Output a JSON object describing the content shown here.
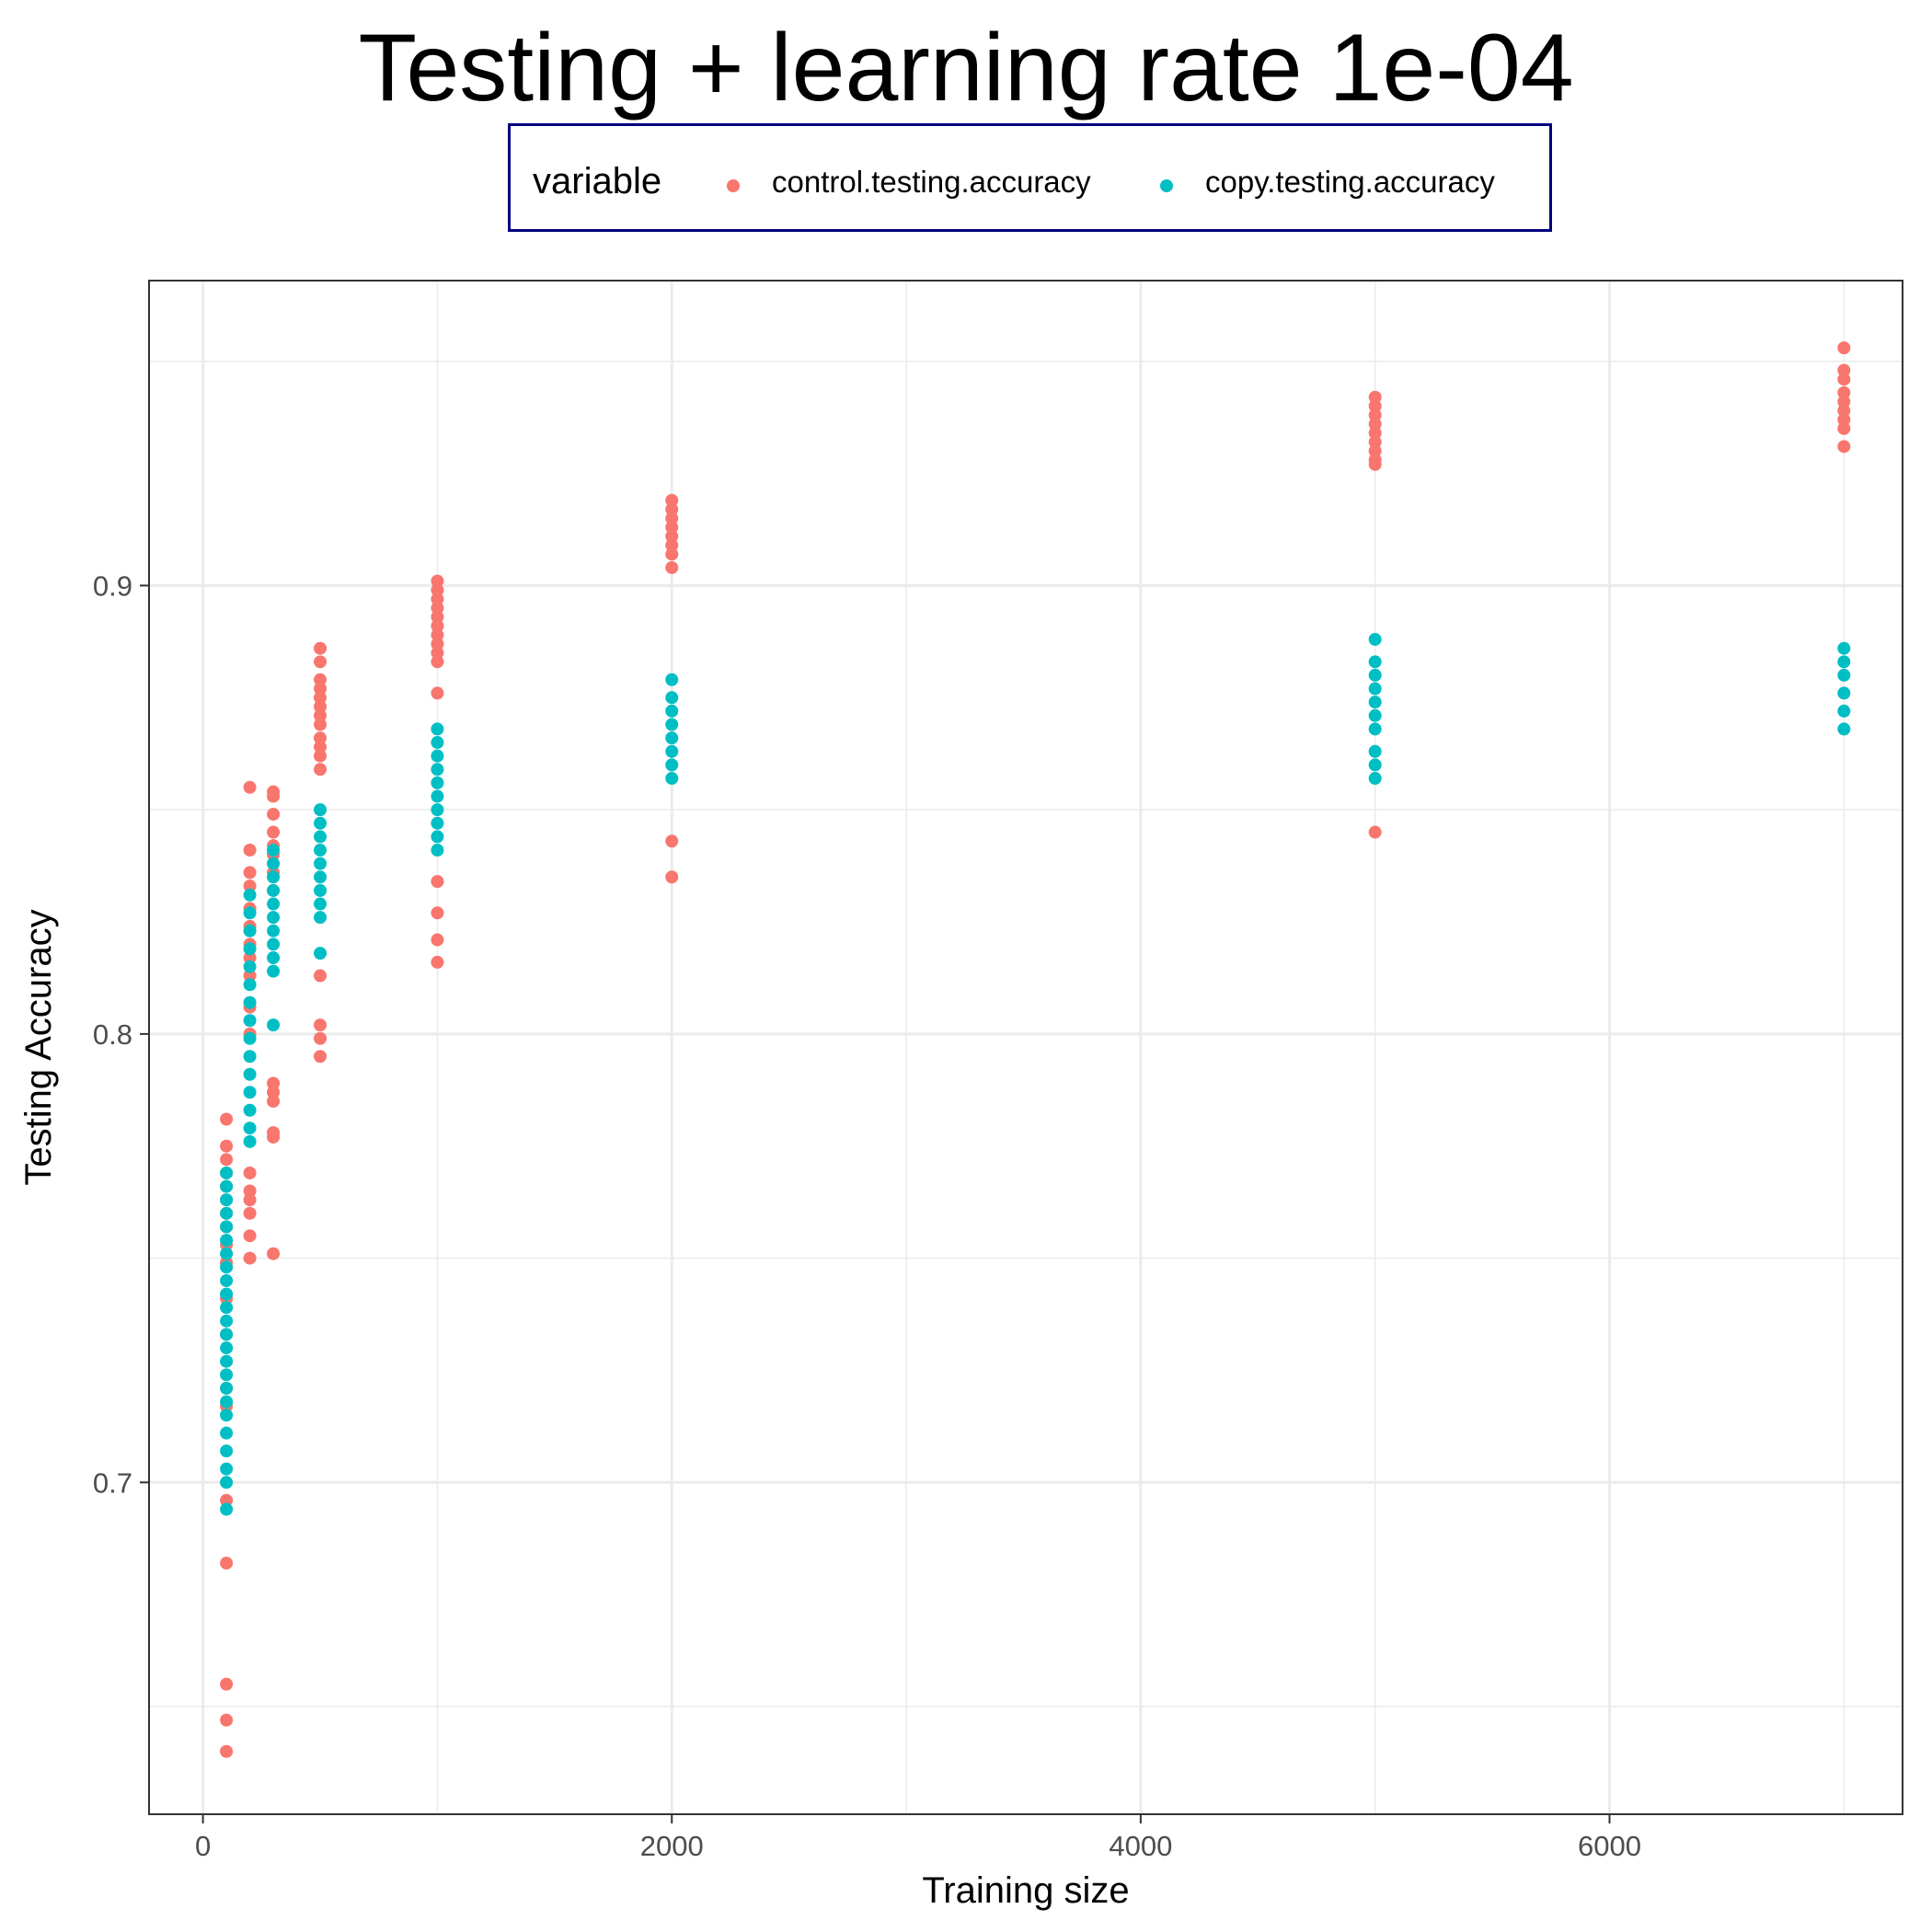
{
  "chart_data": {
    "type": "scatter",
    "title": "Testing + learning rate 1e-04",
    "xlabel": "Training size",
    "ylabel": "Testing Accuracy",
    "xlim": [
      -230,
      7250
    ],
    "ylim": [
      0.626,
      0.968
    ],
    "xticks": [
      0,
      2000,
      4000,
      6000
    ],
    "xtick_labels": [
      "0",
      "2000",
      "4000",
      "6000"
    ],
    "yticks": [
      0.7,
      0.8,
      0.9
    ],
    "ytick_labels": [
      "0.7",
      "0.8",
      "0.9"
    ],
    "grid": true,
    "legend": {
      "title": "variable",
      "placement": "top"
    },
    "series": [
      {
        "name": "control.testing.accuracy",
        "color": "#F8766D",
        "points": [
          [
            100,
            0.781
          ],
          [
            100,
            0.775
          ],
          [
            100,
            0.772
          ],
          [
            100,
            0.769
          ],
          [
            100,
            0.766
          ],
          [
            100,
            0.763
          ],
          [
            100,
            0.76
          ],
          [
            100,
            0.757
          ],
          [
            100,
            0.753
          ],
          [
            100,
            0.749
          ],
          [
            100,
            0.741
          ],
          [
            100,
            0.733
          ],
          [
            100,
            0.721
          ],
          [
            100,
            0.717
          ],
          [
            100,
            0.696
          ],
          [
            100,
            0.682
          ],
          [
            100,
            0.655
          ],
          [
            100,
            0.647
          ],
          [
            100,
            0.64
          ],
          [
            200,
            0.855
          ],
          [
            200,
            0.841
          ],
          [
            200,
            0.836
          ],
          [
            200,
            0.833
          ],
          [
            200,
            0.828
          ],
          [
            200,
            0.824
          ],
          [
            200,
            0.82
          ],
          [
            200,
            0.817
          ],
          [
            200,
            0.813
          ],
          [
            200,
            0.806
          ],
          [
            200,
            0.8
          ],
          [
            200,
            0.769
          ],
          [
            200,
            0.765
          ],
          [
            200,
            0.763
          ],
          [
            200,
            0.76
          ],
          [
            200,
            0.755
          ],
          [
            200,
            0.75
          ],
          [
            300,
            0.854
          ],
          [
            300,
            0.853
          ],
          [
            300,
            0.849
          ],
          [
            300,
            0.845
          ],
          [
            300,
            0.842
          ],
          [
            300,
            0.84
          ],
          [
            300,
            0.836
          ],
          [
            300,
            0.832
          ],
          [
            300,
            0.789
          ],
          [
            300,
            0.787
          ],
          [
            300,
            0.785
          ],
          [
            300,
            0.778
          ],
          [
            300,
            0.777
          ],
          [
            300,
            0.751
          ],
          [
            500,
            0.886
          ],
          [
            500,
            0.883
          ],
          [
            500,
            0.879
          ],
          [
            500,
            0.877
          ],
          [
            500,
            0.875
          ],
          [
            500,
            0.873
          ],
          [
            500,
            0.871
          ],
          [
            500,
            0.869
          ],
          [
            500,
            0.866
          ],
          [
            500,
            0.864
          ],
          [
            500,
            0.862
          ],
          [
            500,
            0.859
          ],
          [
            500,
            0.813
          ],
          [
            500,
            0.802
          ],
          [
            500,
            0.799
          ],
          [
            500,
            0.795
          ],
          [
            1000,
            0.901
          ],
          [
            1000,
            0.899
          ],
          [
            1000,
            0.897
          ],
          [
            1000,
            0.895
          ],
          [
            1000,
            0.893
          ],
          [
            1000,
            0.891
          ],
          [
            1000,
            0.889
          ],
          [
            1000,
            0.887
          ],
          [
            1000,
            0.885
          ],
          [
            1000,
            0.883
          ],
          [
            1000,
            0.876
          ],
          [
            1000,
            0.834
          ],
          [
            1000,
            0.827
          ],
          [
            1000,
            0.821
          ],
          [
            1000,
            0.816
          ],
          [
            2000,
            0.919
          ],
          [
            2000,
            0.917
          ],
          [
            2000,
            0.915
          ],
          [
            2000,
            0.913
          ],
          [
            2000,
            0.911
          ],
          [
            2000,
            0.909
          ],
          [
            2000,
            0.907
          ],
          [
            2000,
            0.904
          ],
          [
            2000,
            0.843
          ],
          [
            2000,
            0.835
          ],
          [
            5000,
            0.942
          ],
          [
            5000,
            0.94
          ],
          [
            5000,
            0.938
          ],
          [
            5000,
            0.936
          ],
          [
            5000,
            0.934
          ],
          [
            5000,
            0.932
          ],
          [
            5000,
            0.93
          ],
          [
            5000,
            0.928
          ],
          [
            5000,
            0.927
          ],
          [
            5000,
            0.845
          ],
          [
            7000,
            0.953
          ],
          [
            7000,
            0.948
          ],
          [
            7000,
            0.946
          ],
          [
            7000,
            0.943
          ],
          [
            7000,
            0.941
          ],
          [
            7000,
            0.939
          ],
          [
            7000,
            0.937
          ],
          [
            7000,
            0.935
          ],
          [
            7000,
            0.931
          ]
        ]
      },
      {
        "name": "copy.testing.accuracy",
        "color": "#00BFC4",
        "points": [
          [
            100,
            0.769
          ],
          [
            100,
            0.766
          ],
          [
            100,
            0.763
          ],
          [
            100,
            0.76
          ],
          [
            100,
            0.757
          ],
          [
            100,
            0.754
          ],
          [
            100,
            0.751
          ],
          [
            100,
            0.748
          ],
          [
            100,
            0.745
          ],
          [
            100,
            0.742
          ],
          [
            100,
            0.739
          ],
          [
            100,
            0.736
          ],
          [
            100,
            0.733
          ],
          [
            100,
            0.73
          ],
          [
            100,
            0.727
          ],
          [
            100,
            0.724
          ],
          [
            100,
            0.721
          ],
          [
            100,
            0.718
          ],
          [
            100,
            0.715
          ],
          [
            100,
            0.711
          ],
          [
            100,
            0.707
          ],
          [
            100,
            0.703
          ],
          [
            100,
            0.7
          ],
          [
            100,
            0.694
          ],
          [
            200,
            0.831
          ],
          [
            200,
            0.827
          ],
          [
            200,
            0.823
          ],
          [
            200,
            0.819
          ],
          [
            200,
            0.815
          ],
          [
            200,
            0.811
          ],
          [
            200,
            0.807
          ],
          [
            200,
            0.803
          ],
          [
            200,
            0.799
          ],
          [
            200,
            0.795
          ],
          [
            200,
            0.791
          ],
          [
            200,
            0.787
          ],
          [
            200,
            0.783
          ],
          [
            200,
            0.779
          ],
          [
            200,
            0.776
          ],
          [
            300,
            0.841
          ],
          [
            300,
            0.838
          ],
          [
            300,
            0.835
          ],
          [
            300,
            0.832
          ],
          [
            300,
            0.829
          ],
          [
            300,
            0.826
          ],
          [
            300,
            0.823
          ],
          [
            300,
            0.82
          ],
          [
            300,
            0.817
          ],
          [
            300,
            0.814
          ],
          [
            300,
            0.802
          ],
          [
            500,
            0.85
          ],
          [
            500,
            0.847
          ],
          [
            500,
            0.844
          ],
          [
            500,
            0.841
          ],
          [
            500,
            0.838
          ],
          [
            500,
            0.835
          ],
          [
            500,
            0.832
          ],
          [
            500,
            0.829
          ],
          [
            500,
            0.826
          ],
          [
            500,
            0.818
          ],
          [
            1000,
            0.868
          ],
          [
            1000,
            0.865
          ],
          [
            1000,
            0.862
          ],
          [
            1000,
            0.859
          ],
          [
            1000,
            0.856
          ],
          [
            1000,
            0.853
          ],
          [
            1000,
            0.85
          ],
          [
            1000,
            0.847
          ],
          [
            1000,
            0.844
          ],
          [
            1000,
            0.841
          ],
          [
            2000,
            0.879
          ],
          [
            2000,
            0.875
          ],
          [
            2000,
            0.872
          ],
          [
            2000,
            0.869
          ],
          [
            2000,
            0.866
          ],
          [
            2000,
            0.863
          ],
          [
            2000,
            0.86
          ],
          [
            2000,
            0.857
          ],
          [
            5000,
            0.888
          ],
          [
            5000,
            0.883
          ],
          [
            5000,
            0.88
          ],
          [
            5000,
            0.877
          ],
          [
            5000,
            0.874
          ],
          [
            5000,
            0.871
          ],
          [
            5000,
            0.868
          ],
          [
            5000,
            0.863
          ],
          [
            5000,
            0.86
          ],
          [
            5000,
            0.857
          ],
          [
            7000,
            0.886
          ],
          [
            7000,
            0.883
          ],
          [
            7000,
            0.88
          ],
          [
            7000,
            0.876
          ],
          [
            7000,
            0.872
          ],
          [
            7000,
            0.868
          ]
        ]
      }
    ]
  }
}
